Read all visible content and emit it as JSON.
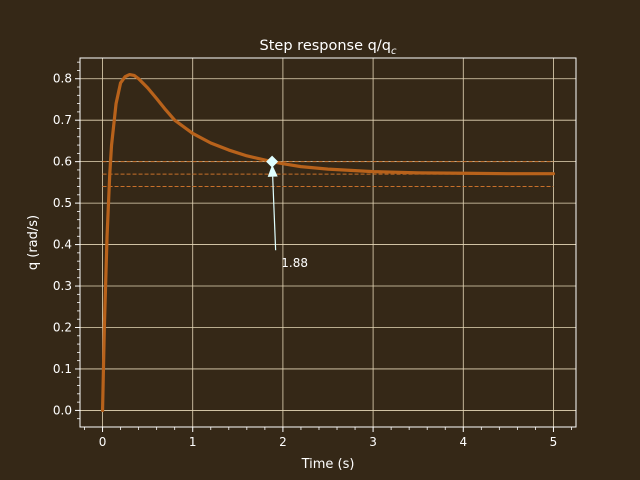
{
  "chart_data": {
    "type": "line",
    "title": "Step response q/q",
    "title_sub": "c",
    "xlabel": "Time (s)",
    "ylabel": "q (rad/s)",
    "xlim": [
      -0.25,
      5.25
    ],
    "ylim": [
      -0.04,
      0.85
    ],
    "grid": true,
    "xticks": [
      0,
      1,
      2,
      3,
      4,
      5
    ],
    "xtick_labels": [
      "0",
      "1",
      "2",
      "3",
      "4",
      "5"
    ],
    "yticks": [
      0.0,
      0.1,
      0.2,
      0.3,
      0.4,
      0.5,
      0.6,
      0.7,
      0.8
    ],
    "ytick_labels": [
      "0.0",
      "0.1",
      "0.2",
      "0.3",
      "0.4",
      "0.5",
      "0.6",
      "0.7",
      "0.8"
    ],
    "series": [
      {
        "color": "#b8621b",
        "x": [
          0,
          0.02,
          0.05,
          0.08,
          0.1,
          0.15,
          0.2,
          0.25,
          0.3,
          0.35,
          0.4,
          0.5,
          0.6,
          0.7,
          0.8,
          1.0,
          1.2,
          1.4,
          1.6,
          1.88,
          2.0,
          2.2,
          2.5,
          3.0,
          3.5,
          4.0,
          4.5,
          5.0
        ],
        "y": [
          0.0,
          0.2,
          0.42,
          0.57,
          0.64,
          0.74,
          0.79,
          0.805,
          0.81,
          0.808,
          0.8,
          0.778,
          0.752,
          0.725,
          0.7,
          0.668,
          0.645,
          0.628,
          0.614,
          0.6,
          0.595,
          0.588,
          0.582,
          0.576,
          0.573,
          0.572,
          0.571,
          0.571
        ]
      }
    ],
    "reference_lines": {
      "color": "#c8702a",
      "x_range": [
        0,
        5
      ],
      "y": [
        0.6,
        0.57,
        0.54
      ]
    },
    "annotation": {
      "text": "1.88",
      "x": 1.88,
      "y": 0.6,
      "text_x": 2.13,
      "text_y": 0.355,
      "color": "#e0ffff"
    },
    "colors": {
      "background": "#352817",
      "grid": "#e6d8b8",
      "axes": "#ffffff"
    }
  }
}
